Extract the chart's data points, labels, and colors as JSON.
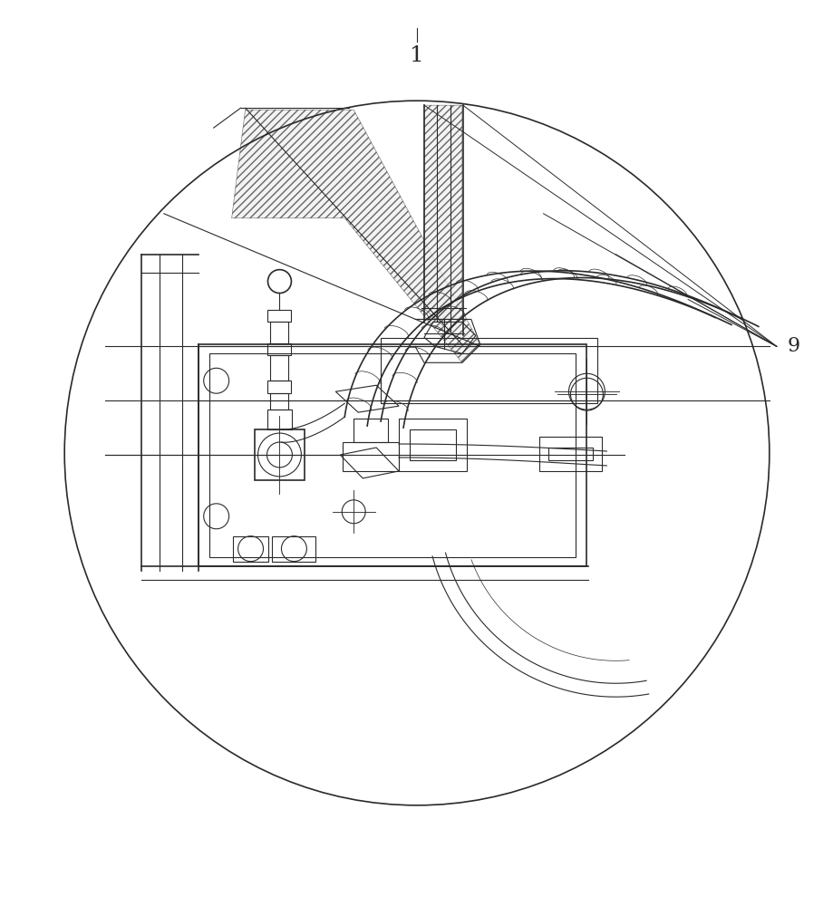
{
  "bg_color": "#ffffff",
  "line_color": "#2a2a2a",
  "fig_width": 9.19,
  "fig_height": 10.0,
  "dpi": 100,
  "label_1": "1",
  "label_9": "9"
}
